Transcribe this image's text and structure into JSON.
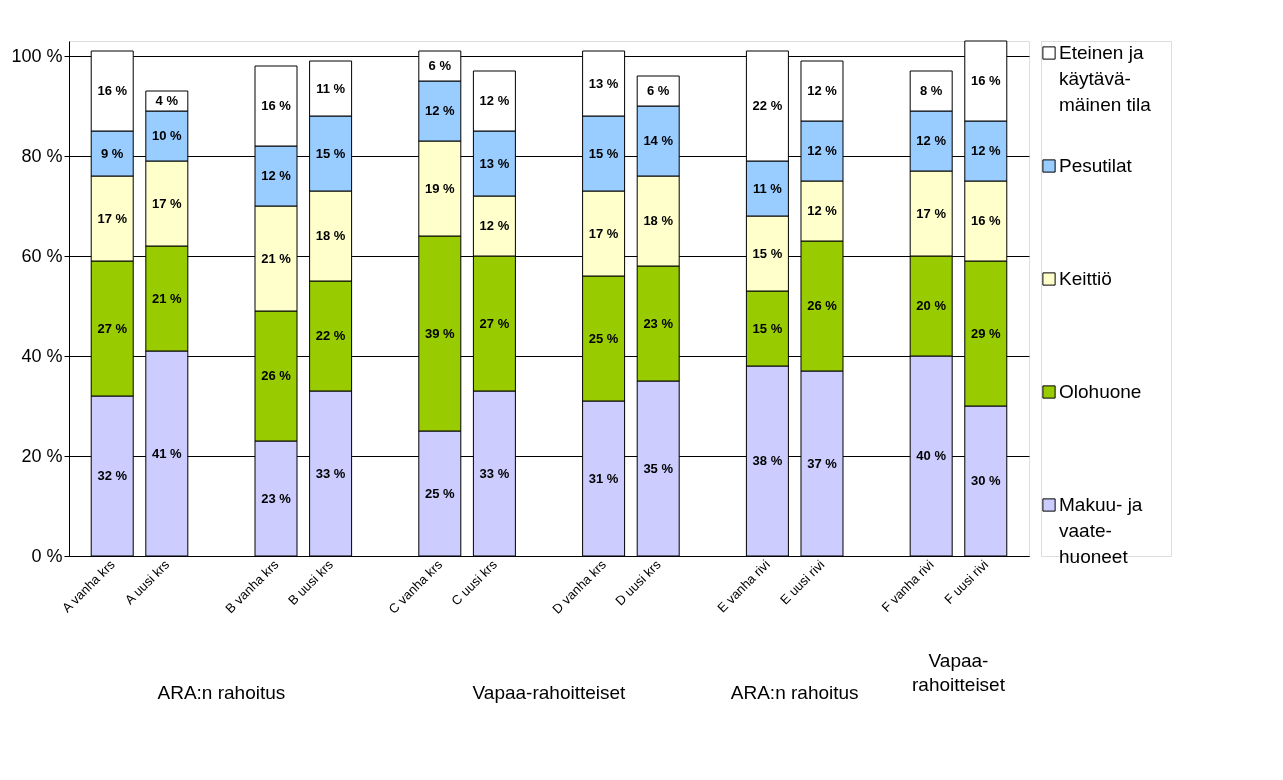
{
  "chart_data": {
    "type": "bar",
    "stacked": true,
    "categories": [
      "A vanha krs",
      "A    uusi  krs",
      null,
      "B vanha krs",
      "B    uusi  krs",
      null,
      "C vanha krs",
      "C    uusi  krs",
      null,
      "D vanha krs",
      "D    uusi  krs",
      null,
      "E vanha rivi",
      "E    uusi  rivi",
      null,
      "F vanha rivi",
      "F    uusi  rivi"
    ],
    "series": [
      {
        "name": "Makuu- ja\nvaate-\nhuoneet",
        "color": "#ccccff",
        "values": [
          32,
          41,
          null,
          23,
          33,
          null,
          25,
          33,
          null,
          31,
          35,
          null,
          38,
          37,
          null,
          40,
          30
        ],
        "value_labels": [
          "32 %",
          "41 %",
          null,
          "23 %",
          "33 %",
          null,
          "25 %",
          "33 %",
          null,
          "31 %",
          "35 %",
          null,
          "38 %",
          "37 %",
          null,
          "40 %",
          "30 %"
        ]
      },
      {
        "name": "Olohuone",
        "color": "#99cc00",
        "values": [
          27,
          21,
          null,
          26,
          22,
          null,
          39,
          27,
          null,
          25,
          23,
          null,
          15,
          26,
          null,
          20,
          29
        ],
        "value_labels": [
          "27 %",
          "21 %",
          null,
          "26 %",
          "22 %",
          null,
          "39 %",
          "27 %",
          null,
          "25 %",
          "23 %",
          null,
          "15 %",
          "26 %",
          null,
          "20 %",
          "29 %"
        ]
      },
      {
        "name": "Keittiö",
        "color": "#ffffcc",
        "values": [
          17,
          17,
          null,
          21,
          18,
          null,
          19,
          12,
          null,
          17,
          18,
          null,
          15,
          12,
          null,
          17,
          16
        ],
        "value_labels": [
          "17 %",
          "17 %",
          null,
          "21 %",
          "18 %",
          null,
          "19 %",
          "12 %",
          null,
          "17 %",
          "18 %",
          null,
          "15 %",
          "12 %",
          null,
          "17 %",
          "16 %"
        ]
      },
      {
        "name": "Pesutilat",
        "color": "#99ccff",
        "values": [
          9,
          10,
          null,
          12,
          15,
          null,
          12,
          13,
          null,
          15,
          14,
          null,
          11,
          12,
          null,
          12,
          12
        ],
        "value_labels": [
          "9 %",
          "10 %",
          null,
          "12 %",
          "15 %",
          null,
          "12 %",
          "13 %",
          null,
          "15 %",
          "14 %",
          null,
          "11 %",
          "12 %",
          null,
          "12 %",
          "12 %"
        ]
      },
      {
        "name": "Eteinen ja\nkäytävä-\nmäinen tila",
        "color": "#ffffff",
        "values": [
          16,
          4,
          null,
          16,
          11,
          null,
          6,
          12,
          null,
          13,
          6,
          null,
          22,
          12,
          null,
          8,
          16
        ],
        "value_labels": [
          "16 %",
          "4 %",
          null,
          "16 %",
          "11 %",
          null,
          "6 %",
          "12 %",
          null,
          "13 %",
          "6 %",
          null,
          "22 %",
          "12 %",
          null,
          "8 %",
          "16 %"
        ]
      }
    ],
    "ylim": [
      0,
      103
    ],
    "yticks": [
      {
        "value": 0,
        "label": "0 %"
      },
      {
        "value": 20,
        "label": "20 %"
      },
      {
        "value": 40,
        "label": "40 %"
      },
      {
        "value": 60,
        "label": "60 %"
      },
      {
        "value": 80,
        "label": "80 %"
      },
      {
        "value": 100,
        "label": "100 %"
      }
    ],
    "grid": "y",
    "legend": "right",
    "annotations": [
      "ARA:n rahoitus",
      "Vapaa-rahoitteiset",
      "ARA:n rahoitus",
      "Vapaa-\nrahoitteiset"
    ]
  }
}
